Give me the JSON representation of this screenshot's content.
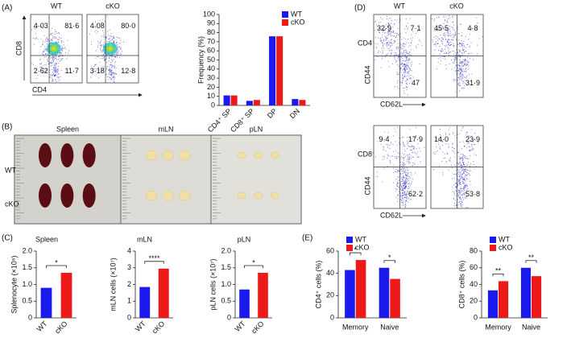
{
  "panel_labels": [
    "(A)",
    "(B)",
    "(C)",
    "(D)",
    "(E)"
  ],
  "flow_a": {
    "axis_x": "CD4",
    "axis_y": "CD8",
    "plots": [
      {
        "title": "WT",
        "quadrants": {
          "tl": "4·03",
          "tr": "81·6",
          "bl": "2·62",
          "br": "11·7"
        }
      },
      {
        "title": "cKO",
        "quadrants": {
          "tl": "4·08",
          "tr": "80·0",
          "bl": "3·18",
          "br": "12·8"
        }
      }
    ]
  },
  "flow_d": {
    "columns": [
      "WT",
      "cKO"
    ],
    "axis_x": "CD62L",
    "axis_y": "CD44",
    "rows": [
      {
        "label": "CD4⁺",
        "plots": [
          {
            "tl": "32·9",
            "tr": "7·1",
            "br": "47"
          },
          {
            "tl": "45·5",
            "tr": "4·8",
            "br": "31·9"
          }
        ]
      },
      {
        "label": "CD8⁺",
        "plots": [
          {
            "tl": "9·4",
            "tr": "17·9",
            "br": "62·2"
          },
          {
            "tl": "14·0",
            "tr": "23·9",
            "br": "53·8"
          }
        ]
      }
    ]
  },
  "photos": {
    "tissues": [
      "Spleen",
      "mLN",
      "pLN"
    ],
    "rows": [
      "WT",
      "cKO"
    ]
  },
  "chart_data": [
    {
      "type": "bar",
      "y_label": "Frequency (%)",
      "categories": [
        "CD4⁺ SP",
        "CD8⁺ SP",
        "DP",
        "DN"
      ],
      "series": [
        {
          "name": "WT",
          "color": "#1a1aee",
          "values": [
            11,
            5,
            76,
            7
          ]
        },
        {
          "name": "cKO",
          "color": "#ee1a1a",
          "values": [
            11,
            6,
            76,
            6
          ]
        }
      ],
      "ylim": [
        0,
        100
      ],
      "yticks": [
        0,
        10,
        20,
        30,
        40,
        50,
        60,
        70,
        80,
        90,
        100
      ]
    },
    {
      "type": "bar",
      "title": "Spleen",
      "y_label": "Splenocyte (×10⁸)",
      "categories": [
        "WT",
        "cKO"
      ],
      "values": [
        0.9,
        1.35
      ],
      "colors": [
        "#1a1aee",
        "#ee1a1a"
      ],
      "significance": "*",
      "ylim": [
        0,
        2
      ],
      "yticks": [
        0,
        0.5,
        {
          "value": 1,
          "label": "1.0"
        },
        1.5,
        {
          "value": 2,
          "label": "2.0"
        }
      ]
    },
    {
      "type": "bar",
      "title": "mLN",
      "y_label": "mLN cells (×10⁷)",
      "categories": [
        "WT",
        "cKO"
      ],
      "values": [
        1.85,
        2.95
      ],
      "colors": [
        "#1a1aee",
        "#ee1a1a"
      ],
      "significance": "****",
      "ylim": [
        0,
        4
      ],
      "yticks": [
        0,
        1,
        2,
        3,
        4
      ]
    },
    {
      "type": "bar",
      "title": "pLN",
      "y_label": "pLN cells (×10⁷)",
      "categories": [
        "WT",
        "cKO"
      ],
      "values": [
        0.85,
        1.35
      ],
      "colors": [
        "#1a1aee",
        "#ee1a1a"
      ],
      "significance": "*",
      "ylim": [
        0,
        2
      ],
      "yticks": [
        0,
        0.5,
        {
          "value": 1,
          "label": "1.0"
        },
        1.5,
        {
          "value": 2,
          "label": "2.0"
        }
      ]
    },
    {
      "type": "bar",
      "y_label": "CD4⁺ cells (%)",
      "categories": [
        "Memory",
        "Naive"
      ],
      "series": [
        {
          "name": "WT",
          "color": "#1a1aee",
          "values": [
            43,
            45
          ]
        },
        {
          "name": "cKO",
          "color": "#ee1a1a",
          "values": [
            52,
            35
          ]
        }
      ],
      "significance": [
        "*",
        "*"
      ],
      "ylim": [
        0,
        60
      ],
      "yticks": [
        0,
        20,
        40,
        60
      ]
    },
    {
      "type": "bar",
      "y_label": "CD8⁺ cells (%)",
      "categories": [
        "Memory",
        "Naive"
      ],
      "series": [
        {
          "name": "WT",
          "color": "#1a1aee",
          "values": [
            33,
            60
          ]
        },
        {
          "name": "cKO",
          "color": "#ee1a1a",
          "values": [
            44,
            50
          ]
        }
      ],
      "significance": [
        "**",
        "**"
      ],
      "ylim": [
        0,
        80
      ],
      "yticks": [
        0,
        20,
        40,
        60,
        80
      ]
    }
  ]
}
